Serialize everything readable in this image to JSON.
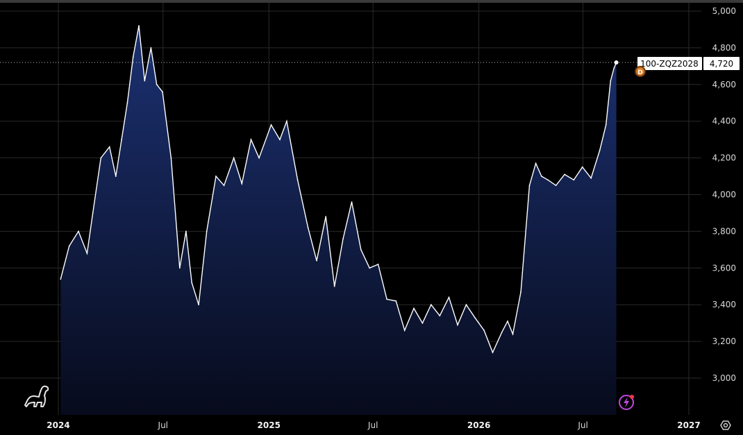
{
  "chart_data": {
    "type": "area",
    "title": "",
    "xlabel": "",
    "ylabel": "",
    "ylim": [
      2800,
      5000
    ],
    "xlim": [
      "2024-01-01",
      "2027-01-01"
    ],
    "y_ticks": [
      "5,000",
      "4,800",
      "4,600",
      "4,400",
      "4,200",
      "4,000",
      "3,800",
      "3,600",
      "3,400",
      "3,200",
      "3,000"
    ],
    "y_tick_values": [
      5000,
      4800,
      4600,
      4400,
      4200,
      4000,
      3800,
      3600,
      3400,
      3200,
      3000
    ],
    "x_ticks": [
      {
        "label": "2024",
        "date": "2024-01-01",
        "major": true
      },
      {
        "label": "Jul",
        "date": "2024-07-01",
        "major": false
      },
      {
        "label": "2025",
        "date": "2025-01-01",
        "major": true
      },
      {
        "label": "Jul",
        "date": "2025-07-01",
        "major": false
      },
      {
        "label": "2026",
        "date": "2026-01-01",
        "major": true
      },
      {
        "label": "Jul",
        "date": "2026-07-01",
        "major": false
      },
      {
        "label": "2027",
        "date": "2027-01-01",
        "major": true
      }
    ],
    "grid": true,
    "series": [
      {
        "name": "100-ZQZ2028",
        "color": "#ffffff",
        "fill_top": "#1c3172",
        "fill_bottom": "#070b1c",
        "x": [
          "2024-01-05",
          "2024-01-20",
          "2024-02-05",
          "2024-02-20",
          "2024-03-01",
          "2024-03-15",
          "2024-03-30",
          "2024-04-10",
          "2024-04-20",
          "2024-04-30",
          "2024-05-10",
          "2024-05-20",
          "2024-05-30",
          "2024-06-10",
          "2024-06-20",
          "2024-06-30",
          "2024-07-15",
          "2024-07-30",
          "2024-08-10",
          "2024-08-20",
          "2024-09-01",
          "2024-09-15",
          "2024-10-01",
          "2024-10-15",
          "2024-11-01",
          "2024-11-15",
          "2024-12-01",
          "2024-12-15",
          "2025-01-05",
          "2025-01-20",
          "2025-02-01",
          "2025-02-20",
          "2025-03-10",
          "2025-03-25",
          "2025-04-10",
          "2025-04-25",
          "2025-05-10",
          "2025-05-25",
          "2025-06-10",
          "2025-06-25",
          "2025-07-10",
          "2025-07-25",
          "2025-08-10",
          "2025-08-25",
          "2025-09-10",
          "2025-09-25",
          "2025-10-10",
          "2025-10-25",
          "2025-11-10",
          "2025-11-25",
          "2025-12-10",
          "2025-12-25",
          "2026-01-10",
          "2026-01-25",
          "2026-02-10",
          "2026-02-20",
          "2026-03-01",
          "2026-03-15",
          "2026-03-30",
          "2026-04-10",
          "2026-04-20",
          "2026-05-01",
          "2026-05-15",
          "2026-05-30",
          "2026-06-15",
          "2026-06-30",
          "2026-07-15",
          "2026-07-30",
          "2026-08-10",
          "2026-08-18",
          "2026-08-24",
          "2026-08-28"
        ],
        "values": [
          3540,
          3720,
          3800,
          3680,
          3900,
          4200,
          4260,
          4100,
          4300,
          4500,
          4750,
          4920,
          4620,
          4800,
          4600,
          4560,
          4200,
          3600,
          3800,
          3520,
          3400,
          3800,
          4100,
          4050,
          4200,
          4060,
          4300,
          4200,
          4380,
          4300,
          4400,
          4080,
          3820,
          3640,
          3880,
          3500,
          3760,
          3960,
          3700,
          3600,
          3620,
          3430,
          3420,
          3260,
          3380,
          3300,
          3400,
          3340,
          3440,
          3290,
          3400,
          3330,
          3260,
          3140,
          3250,
          3310,
          3240,
          3470,
          4050,
          4170,
          4100,
          4080,
          4050,
          4110,
          4080,
          4150,
          4090,
          4240,
          4380,
          4620,
          4690,
          4720
        ]
      }
    ],
    "last_value_label": "4,720",
    "symbol": "100-ZQZ2028"
  },
  "icons": {
    "logo": "dinosaur-icon",
    "flash": "lightning-icon",
    "settings": "gear-icon",
    "marker": "dividend-marker-icon"
  },
  "colors": {
    "background": "#000000",
    "line": "#ffffff",
    "marker": "#e07a1f",
    "flash": "#c049e0"
  }
}
